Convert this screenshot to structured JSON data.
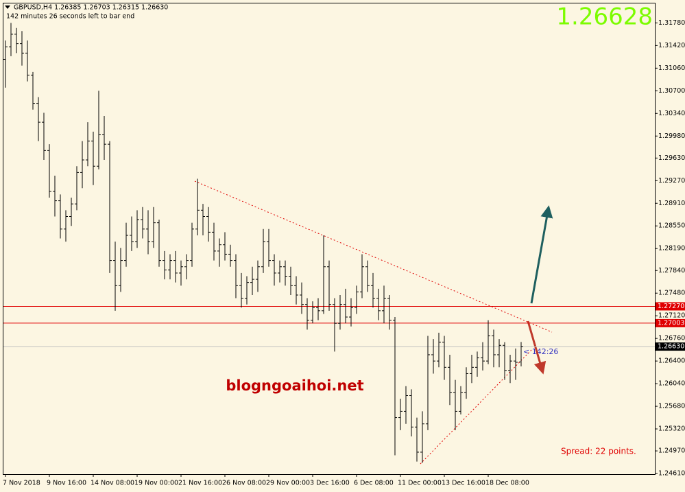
{
  "chart_data": {
    "type": "ohlc",
    "header": "GBPUSD,H4  1.26385 1.26703 1.26315 1.26630",
    "timer": "142 minutes 26 seconds left to bar end",
    "bid": "1.26628",
    "countdown": "< 142:26",
    "watermark": "blogngoaihoi.net",
    "spread": "Spread: 22 points.",
    "bar_color": "#000000",
    "ylim": [
      1.246,
      1.3209
    ],
    "yticks": [
      {
        "value": 1.3178,
        "label": "1.31780"
      },
      {
        "value": 1.3142,
        "label": "1.31420"
      },
      {
        "value": 1.3106,
        "label": "1.31060"
      },
      {
        "value": 1.307,
        "label": "1.30700"
      },
      {
        "value": 1.3034,
        "label": "1.30340"
      },
      {
        "value": 1.2998,
        "label": "1.29980"
      },
      {
        "value": 1.2963,
        "label": "1.29630"
      },
      {
        "value": 1.2927,
        "label": "1.29270"
      },
      {
        "value": 1.2891,
        "label": "1.28910"
      },
      {
        "value": 1.2855,
        "label": "1.28550"
      },
      {
        "value": 1.2819,
        "label": "1.28190"
      },
      {
        "value": 1.2784,
        "label": "1.27840"
      },
      {
        "value": 1.2748,
        "label": "1.27480"
      },
      {
        "value": 1.2712,
        "label": "1.27120"
      },
      {
        "value": 1.2676,
        "label": "1.26760"
      },
      {
        "value": 1.264,
        "label": "1.26400"
      },
      {
        "value": 1.2604,
        "label": "1.26040"
      },
      {
        "value": 1.2568,
        "label": "1.25680"
      },
      {
        "value": 1.2532,
        "label": "1.25320"
      },
      {
        "value": 1.2497,
        "label": "1.24970"
      },
      {
        "value": 1.2461,
        "label": "1.24610"
      }
    ],
    "levels": [
      {
        "value": 1.2727,
        "label": "1.27270",
        "color": "#e00000"
      },
      {
        "value": 1.27003,
        "label": "1.27003",
        "color": "#e00000"
      }
    ],
    "current": {
      "value": 1.2663,
      "label": "1.26630",
      "color": "#c0c0c0"
    },
    "categories": [
      "7 Nov 2018",
      null,
      null,
      null,
      null,
      null,
      null,
      null,
      "9 Nov 16:00",
      null,
      null,
      null,
      null,
      null,
      null,
      null,
      "14 Nov 08:00",
      null,
      null,
      null,
      null,
      null,
      null,
      null,
      "19 Nov 00:00",
      null,
      null,
      null,
      null,
      null,
      null,
      null,
      "21 Nov 16:00",
      null,
      null,
      null,
      null,
      null,
      null,
      null,
      "26 Nov 08:00",
      null,
      null,
      null,
      null,
      null,
      null,
      null,
      "29 Nov 00:00",
      null,
      null,
      null,
      null,
      null,
      null,
      null,
      "3 Dec 16:00",
      null,
      null,
      null,
      null,
      null,
      null,
      null,
      "6 Dec 08:00",
      null,
      null,
      null,
      null,
      null,
      null,
      null,
      "11 Dec 00:00",
      null,
      null,
      null,
      null,
      null,
      null,
      null,
      "13 Dec 16:00",
      null,
      null,
      null,
      null,
      null,
      null,
      null,
      "18 Dec 08:00",
      null,
      null,
      null,
      null,
      null,
      null
    ],
    "ohlc": [
      [
        1.312,
        1.315,
        1.3075,
        1.314
      ],
      [
        1.314,
        1.3178,
        1.3125,
        1.316
      ],
      [
        1.316,
        1.317,
        1.313,
        1.3145
      ],
      [
        1.3145,
        1.3165,
        1.311,
        1.313
      ],
      [
        1.313,
        1.315,
        1.3085,
        1.3095
      ],
      [
        1.3095,
        1.31,
        1.304,
        1.305
      ],
      [
        1.305,
        1.306,
        1.299,
        1.302
      ],
      [
        1.302,
        1.3035,
        1.296,
        1.2975
      ],
      [
        1.2975,
        1.2985,
        1.29,
        1.291
      ],
      [
        1.291,
        1.2935,
        1.287,
        1.2895
      ],
      [
        1.2895,
        1.2905,
        1.2835,
        1.285
      ],
      [
        1.285,
        1.288,
        1.283,
        1.287
      ],
      [
        1.287,
        1.29,
        1.2855,
        1.289
      ],
      [
        1.289,
        1.295,
        1.288,
        1.294
      ],
      [
        1.294,
        1.299,
        1.2915,
        1.296
      ],
      [
        1.296,
        1.302,
        1.295,
        1.299
      ],
      [
        1.299,
        1.3005,
        1.292,
        1.295
      ],
      [
        1.295,
        1.307,
        1.2945,
        1.3
      ],
      [
        1.3,
        1.303,
        1.296,
        1.2985
      ],
      [
        1.2985,
        1.299,
        1.278,
        1.28
      ],
      [
        1.28,
        1.283,
        1.272,
        1.276
      ],
      [
        1.276,
        1.282,
        1.275,
        1.28
      ],
      [
        1.28,
        1.286,
        1.279,
        1.284
      ],
      [
        1.284,
        1.287,
        1.2815,
        1.283
      ],
      [
        1.283,
        1.288,
        1.282,
        1.2865
      ],
      [
        1.2865,
        1.2885,
        1.2835,
        1.285
      ],
      [
        1.285,
        1.288,
        1.281,
        1.283
      ],
      [
        1.283,
        1.2885,
        1.282,
        1.286
      ],
      [
        1.286,
        1.2865,
        1.279,
        1.28
      ],
      [
        1.28,
        1.2815,
        1.277,
        1.2785
      ],
      [
        1.2785,
        1.281,
        1.277,
        1.28
      ],
      [
        1.28,
        1.2815,
        1.2765,
        1.278
      ],
      [
        1.278,
        1.28,
        1.276,
        1.279
      ],
      [
        1.279,
        1.281,
        1.277,
        1.28
      ],
      [
        1.28,
        1.286,
        1.279,
        1.285
      ],
      [
        1.285,
        1.293,
        1.284,
        1.288
      ],
      [
        1.288,
        1.289,
        1.284,
        1.287
      ],
      [
        1.287,
        1.2885,
        1.283,
        1.2845
      ],
      [
        1.2845,
        1.286,
        1.28,
        1.2815
      ],
      [
        1.2815,
        1.2835,
        1.279,
        1.2825
      ],
      [
        1.2825,
        1.2845,
        1.28,
        1.281
      ],
      [
        1.281,
        1.2825,
        1.279,
        1.28
      ],
      [
        1.28,
        1.281,
        1.274,
        1.276
      ],
      [
        1.276,
        1.278,
        1.2725,
        1.274
      ],
      [
        1.274,
        1.2775,
        1.273,
        1.2765
      ],
      [
        1.2765,
        1.279,
        1.2745,
        1.277
      ],
      [
        1.277,
        1.28,
        1.275,
        1.279
      ],
      [
        1.279,
        1.285,
        1.278,
        1.283
      ],
      [
        1.283,
        1.285,
        1.279,
        1.28
      ],
      [
        1.28,
        1.281,
        1.276,
        1.278
      ],
      [
        1.278,
        1.28,
        1.2765,
        1.279
      ],
      [
        1.279,
        1.28,
        1.276,
        1.2775
      ],
      [
        1.2775,
        1.279,
        1.2745,
        1.276
      ],
      [
        1.276,
        1.2775,
        1.273,
        1.2745
      ],
      [
        1.2745,
        1.2765,
        1.2715,
        1.273
      ],
      [
        1.273,
        1.274,
        1.269,
        1.2705
      ],
      [
        1.2705,
        1.2735,
        1.27,
        1.2725
      ],
      [
        1.2725,
        1.274,
        1.2705,
        1.272
      ],
      [
        1.272,
        1.284,
        1.2715,
        1.279
      ],
      [
        1.279,
        1.28,
        1.272,
        1.273
      ],
      [
        1.273,
        1.274,
        1.2655,
        1.27
      ],
      [
        1.27,
        1.2745,
        1.269,
        1.273
      ],
      [
        1.273,
        1.2755,
        1.27,
        1.271
      ],
      [
        1.271,
        1.274,
        1.2695,
        1.2725
      ],
      [
        1.2725,
        1.276,
        1.2715,
        1.275
      ],
      [
        1.275,
        1.281,
        1.274,
        1.279
      ],
      [
        1.279,
        1.28,
        1.275,
        1.276
      ],
      [
        1.276,
        1.278,
        1.2725,
        1.274
      ],
      [
        1.274,
        1.2755,
        1.2705,
        1.272
      ],
      [
        1.272,
        1.276,
        1.27,
        1.274
      ],
      [
        1.274,
        1.2745,
        1.269,
        1.2705
      ],
      [
        1.2705,
        1.271,
        1.249,
        1.255
      ],
      [
        1.255,
        1.258,
        1.253,
        1.256
      ],
      [
        1.256,
        1.26,
        1.254,
        1.2585
      ],
      [
        1.2585,
        1.2595,
        1.252,
        1.2535
      ],
      [
        1.2535,
        1.255,
        1.248,
        1.2495
      ],
      [
        1.2495,
        1.256,
        1.2478,
        1.254
      ],
      [
        1.254,
        1.268,
        1.253,
        1.265
      ],
      [
        1.265,
        1.2675,
        1.262,
        1.264
      ],
      [
        1.264,
        1.2685,
        1.263,
        1.267
      ],
      [
        1.267,
        1.268,
        1.261,
        1.263
      ],
      [
        1.263,
        1.265,
        1.257,
        1.259
      ],
      [
        1.259,
        1.261,
        1.253,
        1.256
      ],
      [
        1.256,
        1.26,
        1.2555,
        1.259
      ],
      [
        1.259,
        1.263,
        1.258,
        1.262
      ],
      [
        1.262,
        1.265,
        1.2605,
        1.263
      ],
      [
        1.263,
        1.2655,
        1.2615,
        1.2645
      ],
      [
        1.2645,
        1.267,
        1.2625,
        1.264
      ],
      [
        1.264,
        1.2705,
        1.2635,
        1.268
      ],
      [
        1.268,
        1.269,
        1.263,
        1.265
      ],
      [
        1.265,
        1.2675,
        1.263,
        1.2665
      ],
      [
        1.2665,
        1.267,
        1.261,
        1.2625
      ],
      [
        1.2625,
        1.265,
        1.2605,
        1.264
      ],
      [
        1.264,
        1.266,
        1.261,
        1.2638
      ],
      [
        1.26385,
        1.26703,
        1.26315,
        1.2663
      ]
    ]
  }
}
